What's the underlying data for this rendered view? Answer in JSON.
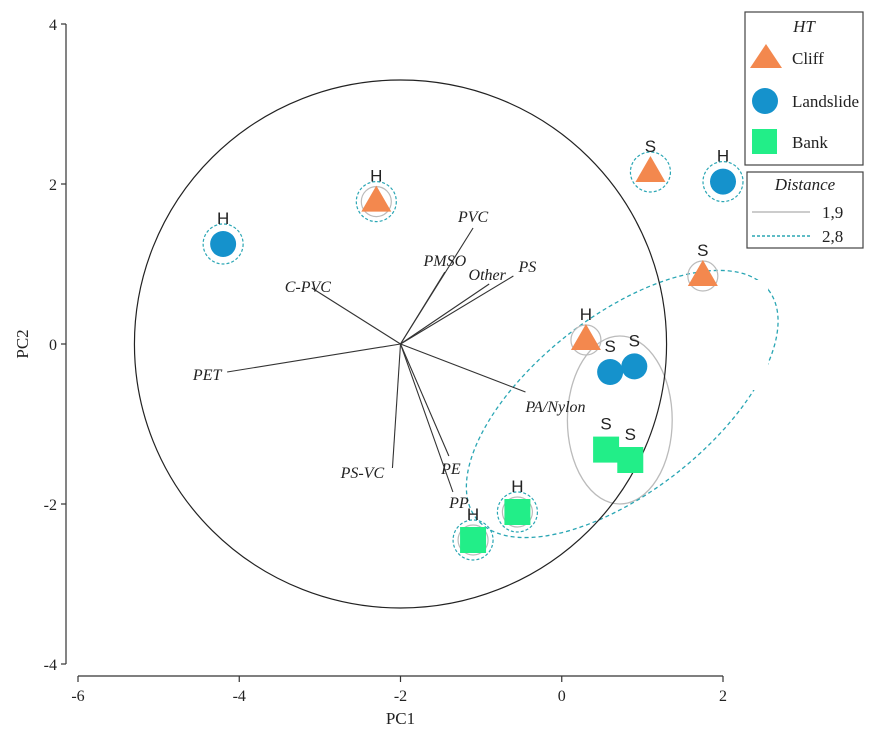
{
  "chart_data": {
    "type": "scatter",
    "xlabel": "PC1",
    "ylabel": "PC2",
    "xlim": [
      -6,
      2
    ],
    "ylim": [
      -4,
      4
    ],
    "xticks": [
      "-6",
      "-4",
      "-2",
      "0",
      "2"
    ],
    "yticks": [
      "-4",
      "-2",
      "0",
      "2",
      "4"
    ],
    "colors": {
      "Cliff": "#f3884e",
      "Landslide": "#1592cc",
      "Bank": "#22ee88",
      "dist19": "#bbbbbb",
      "dist28": "#2aa6b4"
    },
    "correlation_circle": {
      "center": [
        -2,
        0
      ],
      "radius": 3.3
    },
    "points": [
      {
        "group": "Landslide",
        "x": -4.2,
        "y": 1.25,
        "label": "H"
      },
      {
        "group": "Cliff",
        "x": -2.3,
        "y": 1.78,
        "label": "H"
      },
      {
        "group": "Cliff",
        "x": 1.1,
        "y": 2.15,
        "label": "S"
      },
      {
        "group": "Landslide",
        "x": 2.0,
        "y": 2.03,
        "label": "H"
      },
      {
        "group": "Cliff",
        "x": 1.75,
        "y": 0.85,
        "label": "S"
      },
      {
        "group": "Cliff",
        "x": 0.3,
        "y": 0.05,
        "label": "H"
      },
      {
        "group": "Landslide",
        "x": 0.6,
        "y": -0.35,
        "label": "S"
      },
      {
        "group": "Landslide",
        "x": 0.9,
        "y": -0.28,
        "label": "S"
      },
      {
        "group": "Bank",
        "x": 0.55,
        "y": -1.32,
        "label": "S"
      },
      {
        "group": "Bank",
        "x": 0.85,
        "y": -1.45,
        "label": "S"
      },
      {
        "group": "Bank",
        "x": -0.55,
        "y": -2.1,
        "label": "H"
      },
      {
        "group": "Bank",
        "x": -1.1,
        "y": -2.45,
        "label": "H"
      }
    ],
    "vectors": [
      {
        "label": "PVC",
        "x": -1.1,
        "y": 1.45
      },
      {
        "label": "PMSO",
        "x": -1.45,
        "y": 0.9
      },
      {
        "label": "Other",
        "x": -0.9,
        "y": 0.75
      },
      {
        "label": "PS",
        "x": -0.6,
        "y": 0.85
      },
      {
        "label": "C-PVC",
        "x": -3.1,
        "y": 0.7
      },
      {
        "label": "PET",
        "x": -4.15,
        "y": -0.35
      },
      {
        "label": "PA/Nylon",
        "x": -0.45,
        "y": -0.6
      },
      {
        "label": "PS-VC",
        "x": -2.1,
        "y": -1.55
      },
      {
        "label": "PE",
        "x": -1.4,
        "y": -1.4
      },
      {
        "label": "PP",
        "x": -1.35,
        "y": -1.85
      }
    ],
    "legend": {
      "title": "HT",
      "entries": [
        {
          "label": "Cliff",
          "marker": "triangle"
        },
        {
          "label": "Landslide",
          "marker": "circle"
        },
        {
          "label": "Bank",
          "marker": "square"
        }
      ],
      "distance_title": "Distance",
      "distance_entries": [
        {
          "label": "1,9",
          "style": "solid"
        },
        {
          "label": "2,8",
          "style": "dashed"
        }
      ],
      "placement": "top-right"
    }
  }
}
